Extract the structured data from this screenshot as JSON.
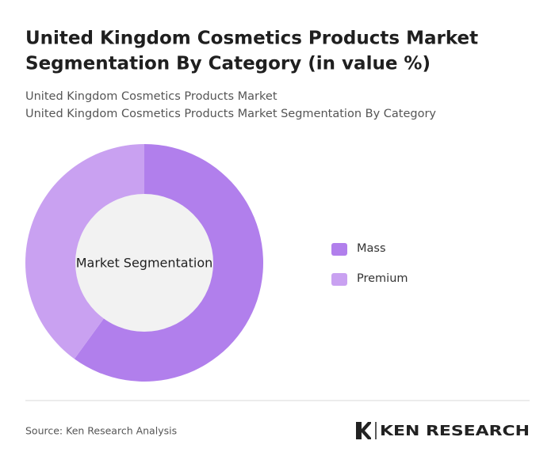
{
  "chart_data": {
    "type": "pie",
    "title": [
      "United Kingdom Cosmetics Products Market",
      "Segmentation By Category (in value %)"
    ],
    "subtitle": [
      "United Kingdom Cosmetics Products Market",
      "United Kingdom Cosmetics Products Market Segmentation By Category"
    ],
    "center_label": "Market Segmentation",
    "categories": [
      "Mass",
      "Premium"
    ],
    "values": [
      60,
      40
    ],
    "colors": [
      "#b17fec",
      "#c9a1f1"
    ],
    "donut": true
  },
  "footer": {
    "source": "Source: Ken Research Analysis",
    "logo": "KEN RESEARCH"
  }
}
